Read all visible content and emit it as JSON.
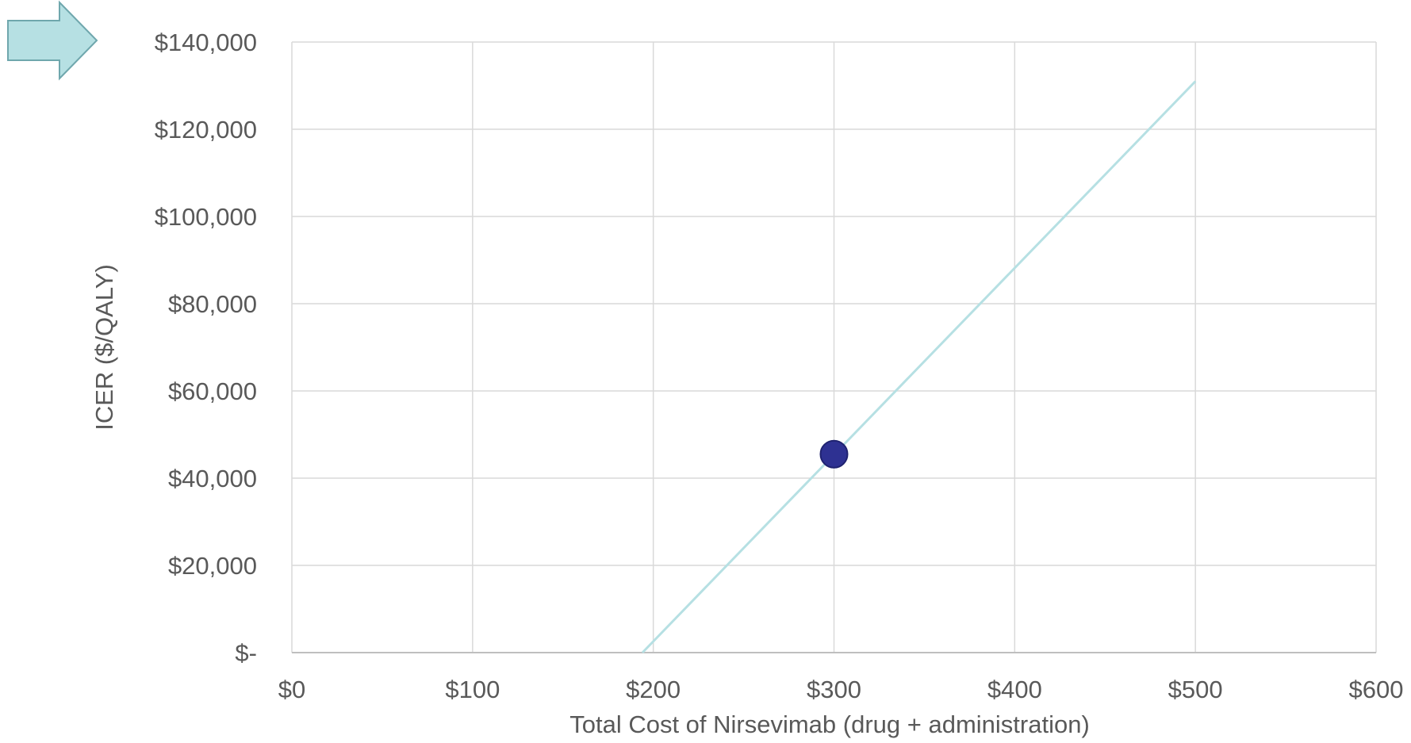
{
  "chart_data": {
    "type": "line",
    "title": "",
    "xlabel": "Total Cost of Nirsevimab (drug + administration)",
    "ylabel": "ICER ($/QALY)",
    "xlim": [
      0,
      600
    ],
    "ylim": [
      0,
      140000
    ],
    "grid": true,
    "x_ticks": [
      {
        "value": 0,
        "label": "$0"
      },
      {
        "value": 100,
        "label": "$100"
      },
      {
        "value": 200,
        "label": "$200"
      },
      {
        "value": 300,
        "label": "$300"
      },
      {
        "value": 400,
        "label": "$400"
      },
      {
        "value": 500,
        "label": "$500"
      },
      {
        "value": 600,
        "label": "$600"
      }
    ],
    "y_ticks": [
      {
        "value": 0,
        "label": "$-"
      },
      {
        "value": 20000,
        "label": "$20,000"
      },
      {
        "value": 40000,
        "label": "$40,000"
      },
      {
        "value": 60000,
        "label": "$60,000"
      },
      {
        "value": 80000,
        "label": "$80,000"
      },
      {
        "value": 100000,
        "label": "$100,000"
      },
      {
        "value": 120000,
        "label": "$120,000"
      },
      {
        "value": 140000,
        "label": "$140,000"
      }
    ],
    "series": [
      {
        "x": [
          194,
          500
        ],
        "y": [
          0,
          131000
        ],
        "color": "#b6e0e3"
      }
    ],
    "highlight_point": {
      "x": 300,
      "y": 45500,
      "color": "#2e3192",
      "stroke": "#1f2270"
    },
    "colors": {
      "grid": "#d9d9d9",
      "axis": "#bfbfbf",
      "text": "#595959",
      "arrow_fill": "#b6e0e3",
      "arrow_stroke": "#6fa7ad"
    }
  },
  "annotation": {
    "icon": "arrow-right-icon"
  }
}
